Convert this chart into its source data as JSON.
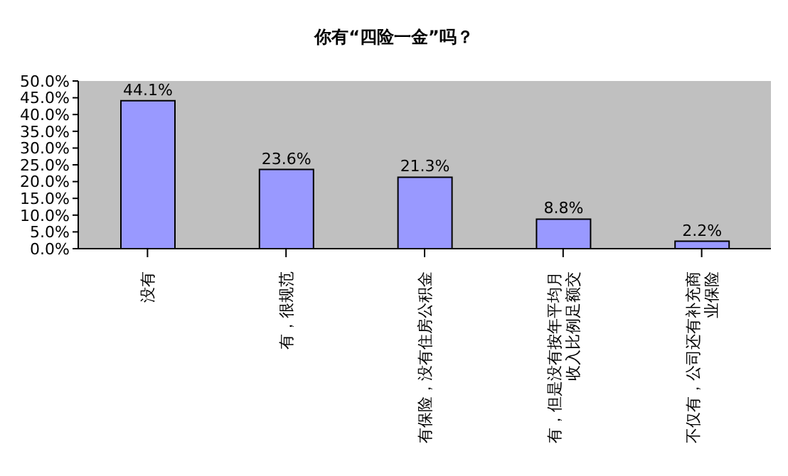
{
  "chart_data": {
    "type": "bar",
    "title": "你有“四险一金”吗？",
    "categories": [
      "没有",
      "有，很规范",
      "有保险，没有住房公积金",
      "有，但是没有按年平均月收入比例足额交",
      "不仅有，公司还有补充商业保险"
    ],
    "values": [
      44.1,
      23.6,
      21.3,
      8.8,
      2.2
    ],
    "value_labels": [
      "44.1%",
      "23.6%",
      "21.3%",
      "8.8%",
      "2.2%"
    ],
    "color": "#9999ff",
    "ylim": [
      0,
      50
    ],
    "yticks": [
      {
        "value": 0,
        "label": "0.0%"
      },
      {
        "value": 5,
        "label": "5.0%"
      },
      {
        "value": 10,
        "label": "10.0%"
      },
      {
        "value": 15,
        "label": "15.0%"
      },
      {
        "value": 20,
        "label": "20.0%"
      },
      {
        "value": 25,
        "label": "25.0%"
      },
      {
        "value": 30,
        "label": "30.0%"
      },
      {
        "value": 35,
        "label": "35.0%"
      },
      {
        "value": 40,
        "label": "40.0%"
      },
      {
        "value": 45,
        "label": "45.0%"
      },
      {
        "value": 50,
        "label": "50.0%"
      }
    ],
    "legend": false
  }
}
